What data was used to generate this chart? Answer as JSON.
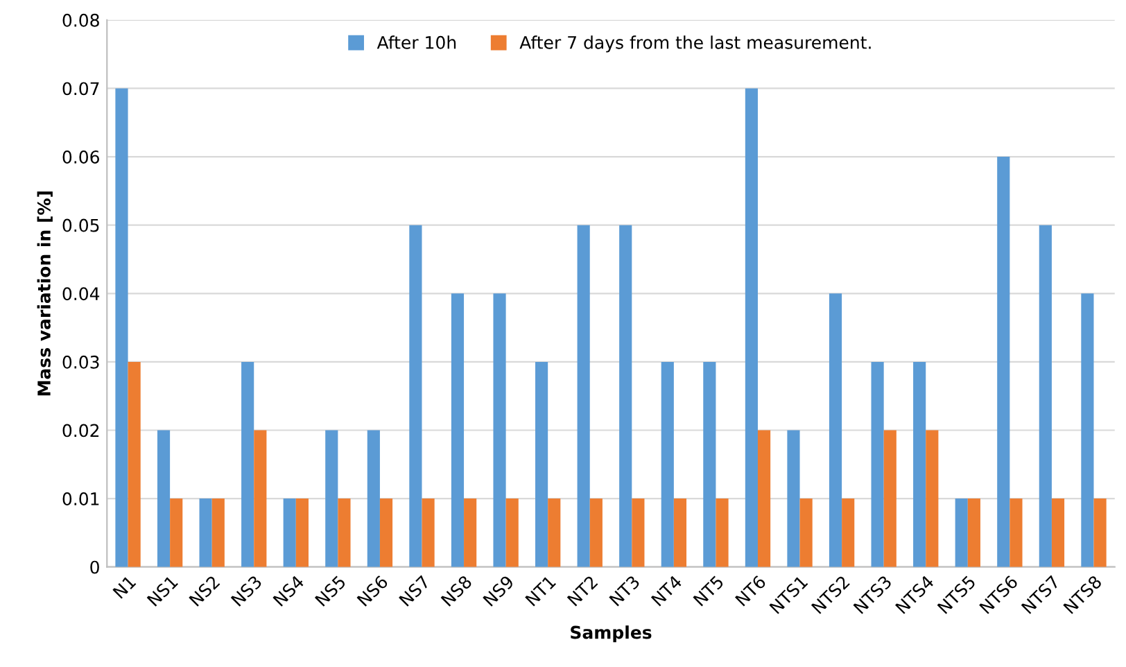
{
  "chart_data": {
    "type": "bar",
    "xlabel": "Samples",
    "ylabel": "Mass variation in [%]",
    "categories": [
      "N1",
      "NS1",
      "NS2",
      "NS3",
      "NS4",
      "NS5",
      "NS6",
      "NS7",
      "NS8",
      "NS9",
      "NT1",
      "NT2",
      "NT3",
      "NT4",
      "NT5",
      "NT6",
      "NTS1",
      "NTS2",
      "NTS3",
      "NTS4",
      "NTS5",
      "NTS6",
      "NTS7",
      "NTS8"
    ],
    "series": [
      {
        "name": "After 10h",
        "color": "#5b9bd5",
        "values": [
          0.07,
          0.02,
          0.01,
          0.03,
          0.01,
          0.02,
          0.02,
          0.05,
          0.04,
          0.04,
          0.03,
          0.05,
          0.05,
          0.03,
          0.03,
          0.07,
          0.02,
          0.04,
          0.03,
          0.03,
          0.01,
          0.06,
          0.05,
          0.04
        ]
      },
      {
        "name": "After 7 days from the last measurement.",
        "color": "#ed7d31",
        "values": [
          0.03,
          0.01,
          0.01,
          0.02,
          0.01,
          0.01,
          0.01,
          0.01,
          0.01,
          0.01,
          0.01,
          0.01,
          0.01,
          0.01,
          0.01,
          0.02,
          0.01,
          0.01,
          0.02,
          0.02,
          0.01,
          0.01,
          0.01,
          0.01
        ]
      }
    ],
    "ylim": [
      0,
      0.08
    ],
    "yticks": [
      0,
      0.01,
      0.02,
      0.03,
      0.04,
      0.05,
      0.06,
      0.07,
      0.08
    ],
    "grid": "y",
    "legend": "top"
  }
}
